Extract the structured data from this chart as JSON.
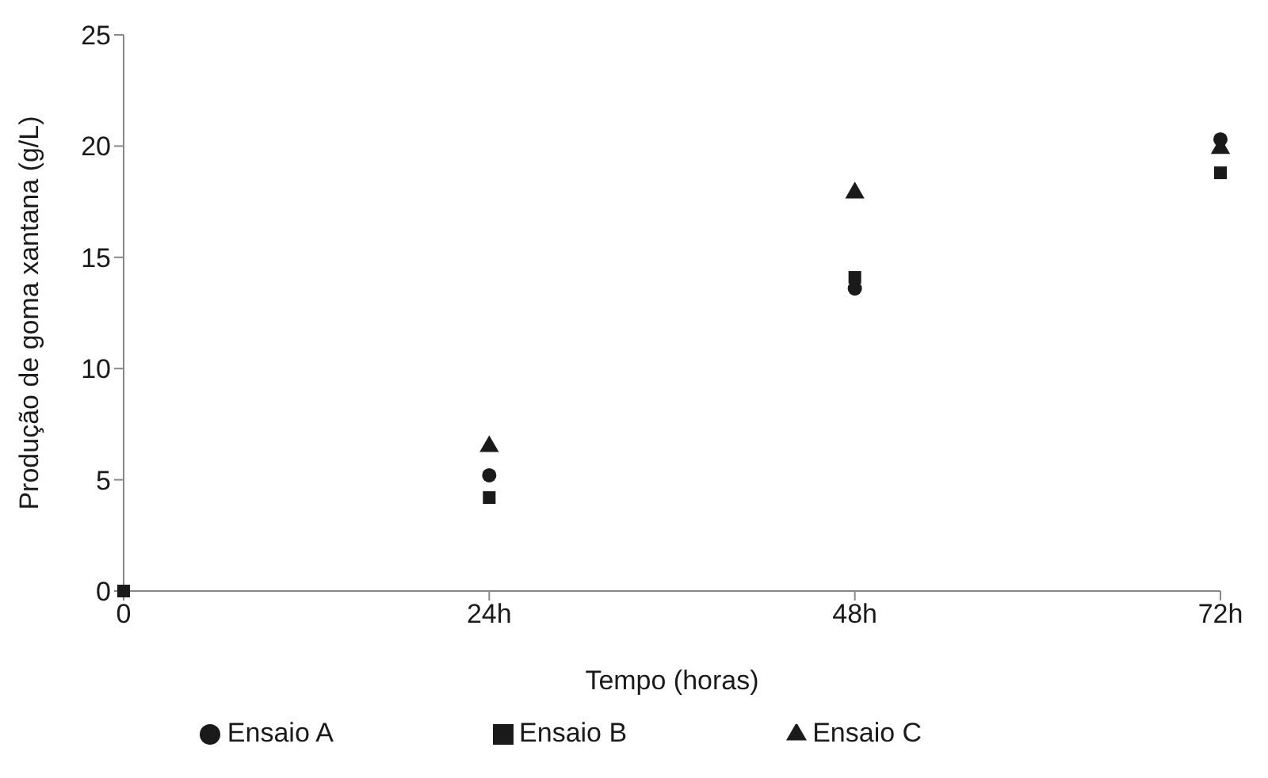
{
  "chart_data": {
    "type": "scatter",
    "xlabel": "Tempo (horas)",
    "ylabel": "Produção de goma xantana (g/L)",
    "x": [
      0,
      24,
      48,
      72
    ],
    "series": [
      {
        "name": "Ensaio A",
        "color": "#1a1a1a",
        "marker": "circle",
        "values": [
          null,
          5.2,
          13.6,
          20.3
        ]
      },
      {
        "name": "Ensaio B",
        "color": "#1a1a1a",
        "marker": "square",
        "values": [
          0,
          4.2,
          14.1,
          18.8
        ]
      },
      {
        "name": "Ensaio C",
        "color": "#1a1a1a",
        "marker": "triangle",
        "values": [
          null,
          6.5,
          17.9,
          19.9
        ]
      }
    ],
    "xlim": [
      0,
      72
    ],
    "xticks": [
      0,
      {
        "value": 24,
        "label": "24h"
      },
      {
        "value": 48,
        "label": "48h"
      },
      {
        "value": 72,
        "label": "72h"
      }
    ],
    "ylim": [
      0,
      25
    ],
    "yticks": [
      0,
      5,
      10,
      15,
      20,
      25
    ],
    "grid": false,
    "legend": "bottom"
  }
}
